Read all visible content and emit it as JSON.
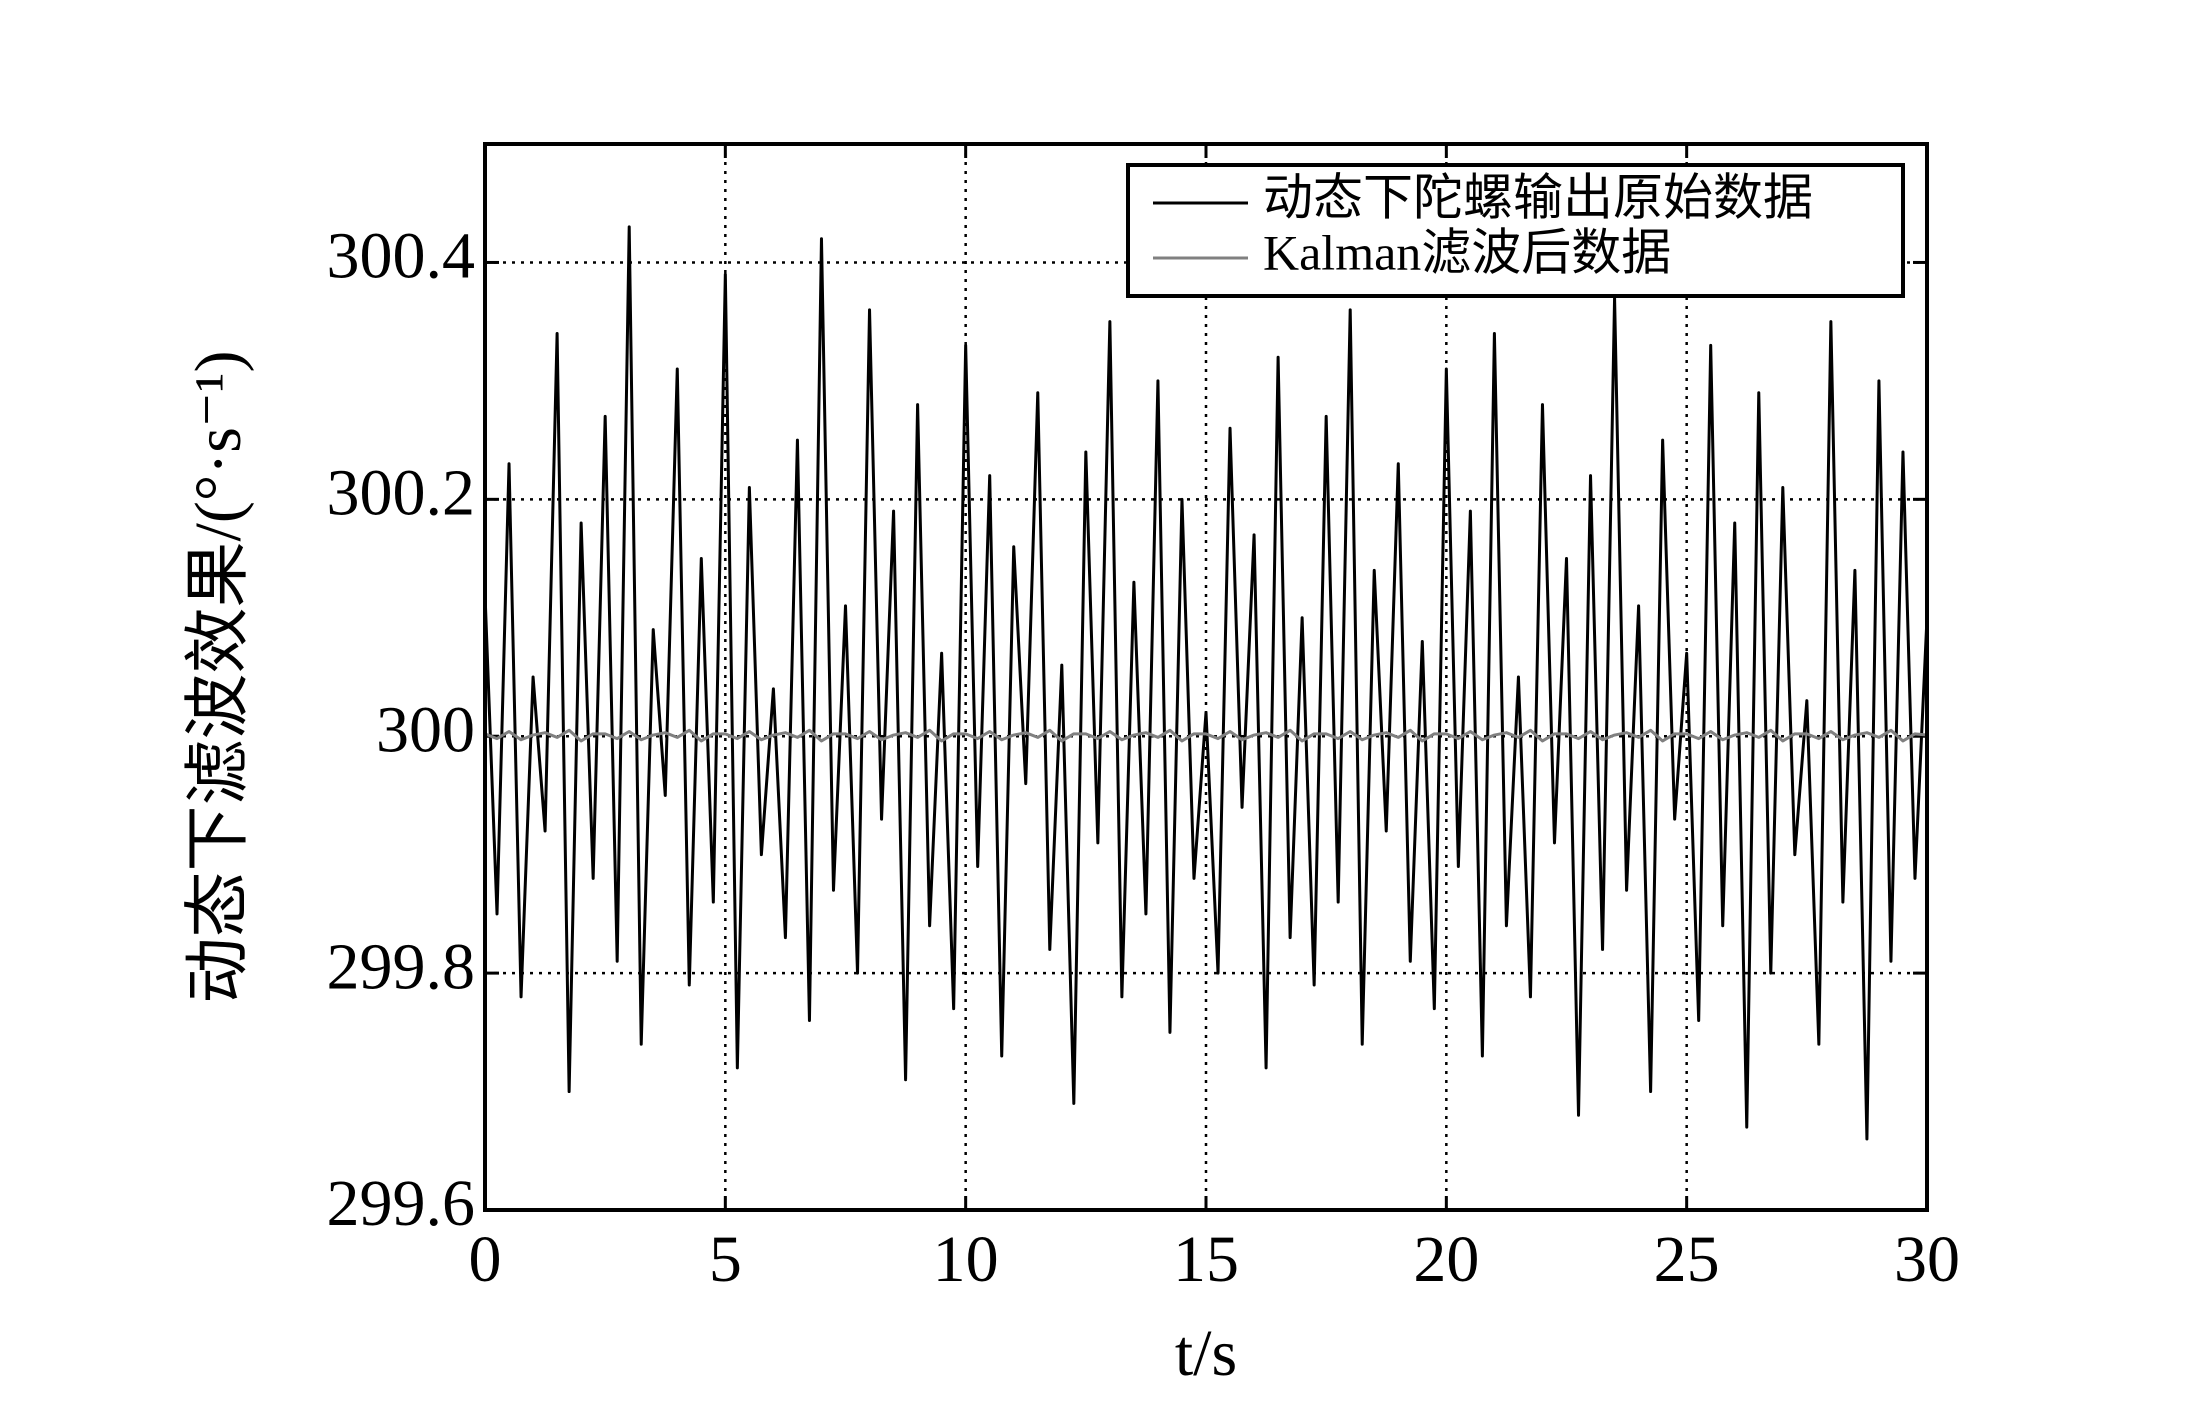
{
  "chart_data": {
    "type": "line",
    "x_label": "t/s",
    "y_label": "动态下滤波效果/(°·s⁻¹)",
    "xlim": [
      0,
      30
    ],
    "xticks": [
      0,
      5,
      10,
      15,
      20,
      25,
      30
    ],
    "ylim": [
      299.6,
      300.5
    ],
    "yticks": [
      299.6,
      299.8,
      300,
      300.2,
      300.4
    ],
    "grid": true,
    "legend": "upper right",
    "x": [
      0,
      0.25,
      0.5,
      0.75,
      1,
      1.25,
      1.5,
      1.75,
      2,
      2.25,
      2.5,
      2.75,
      3,
      3.25,
      3.5,
      3.75,
      4,
      4.25,
      4.5,
      4.75,
      5,
      5.25,
      5.5,
      5.75,
      6,
      6.25,
      6.5,
      6.75,
      7,
      7.25,
      7.5,
      7.75,
      8,
      8.25,
      8.5,
      8.75,
      9,
      9.25,
      9.5,
      9.75,
      10,
      10.25,
      10.5,
      10.75,
      11,
      11.25,
      11.5,
      11.75,
      12,
      12.25,
      12.5,
      12.75,
      13,
      13.25,
      13.5,
      13.75,
      14,
      14.25,
      14.5,
      14.75,
      15,
      15.25,
      15.5,
      15.75,
      16,
      16.25,
      16.5,
      16.75,
      17,
      17.25,
      17.5,
      17.75,
      18,
      18.25,
      18.5,
      18.75,
      19,
      19.25,
      19.5,
      19.75,
      20,
      20.25,
      20.5,
      20.75,
      21,
      21.25,
      21.5,
      21.75,
      22,
      22.25,
      22.5,
      22.75,
      23,
      23.25,
      23.5,
      23.75,
      24,
      24.25,
      24.5,
      24.75,
      25,
      25.25,
      25.5,
      25.75,
      26,
      26.25,
      26.5,
      26.75,
      27,
      27.25,
      27.5,
      27.75,
      28,
      28.25,
      28.5,
      28.75,
      29,
      29.25,
      29.5,
      29.75,
      30
    ],
    "series": [
      {
        "name": "动态下陀螺输出原始数据",
        "color": "#000000",
        "values": [
          300.12,
          299.85,
          300.23,
          299.78,
          300.05,
          299.92,
          300.34,
          299.7,
          300.18,
          299.88,
          300.27,
          299.81,
          300.43,
          299.74,
          300.09,
          299.95,
          300.31,
          299.79,
          300.15,
          299.86,
          300.39,
          299.72,
          300.21,
          299.9,
          300.04,
          299.83,
          300.25,
          299.76,
          300.42,
          299.87,
          300.11,
          299.8,
          300.36,
          299.93,
          300.19,
          299.71,
          300.28,
          299.84,
          300.07,
          299.77,
          300.33,
          299.89,
          300.22,
          299.73,
          300.16,
          299.96,
          300.29,
          299.82,
          300.06,
          299.69,
          300.24,
          299.91,
          300.35,
          299.78,
          300.13,
          299.85,
          300.3,
          299.75,
          300.2,
          299.88,
          300.02,
          299.8,
          300.26,
          299.94,
          300.17,
          299.72,
          300.32,
          299.83,
          300.1,
          299.79,
          300.27,
          299.86,
          300.36,
          299.74,
          300.14,
          299.92,
          300.23,
          299.81,
          300.08,
          299.77,
          300.31,
          299.89,
          300.19,
          299.73,
          300.34,
          299.84,
          300.05,
          299.78,
          300.28,
          299.91,
          300.15,
          299.68,
          300.22,
          299.82,
          300.37,
          299.87,
          300.11,
          299.7,
          300.25,
          299.93,
          300.07,
          299.76,
          300.33,
          299.84,
          300.18,
          299.67,
          300.29,
          299.8,
          300.21,
          299.9,
          300.03,
          299.74,
          300.35,
          299.86,
          300.14,
          299.66,
          300.3,
          299.81,
          300.24,
          299.88,
          300.1
        ]
      },
      {
        "name": "Kalman滤波后数据",
        "color": "#808080",
        "values": [
          300.002,
          299.998,
          300.004,
          299.997,
          300.001,
          300.003,
          299.999,
          300.005,
          299.996,
          300.002,
          300.002,
          299.998,
          300.004,
          299.997,
          300.001,
          300.003,
          299.999,
          300.005,
          299.996,
          300.002,
          300.002,
          299.998,
          300.004,
          299.997,
          300.001,
          300.003,
          299.999,
          300.005,
          299.996,
          300.002,
          300.002,
          299.998,
          300.004,
          299.997,
          300.001,
          300.003,
          299.999,
          300.005,
          299.996,
          300.002,
          300.002,
          299.998,
          300.004,
          299.997,
          300.001,
          300.003,
          299.999,
          300.005,
          299.996,
          300.002,
          300.002,
          299.998,
          300.004,
          299.997,
          300.001,
          300.003,
          299.999,
          300.005,
          299.996,
          300.002,
          300.002,
          299.998,
          300.004,
          299.997,
          300.001,
          300.003,
          299.999,
          300.005,
          299.996,
          300.002,
          300.002,
          299.998,
          300.004,
          299.997,
          300.001,
          300.003,
          299.999,
          300.005,
          299.996,
          300.002,
          300.002,
          299.998,
          300.004,
          299.997,
          300.001,
          300.003,
          299.999,
          300.005,
          299.996,
          300.002,
          300.002,
          299.998,
          300.004,
          299.997,
          300.001,
          300.003,
          299.999,
          300.005,
          299.996,
          300.002,
          300.002,
          299.998,
          300.004,
          299.997,
          300.001,
          300.003,
          299.999,
          300.005,
          299.996,
          300.002,
          300.002,
          299.998,
          300.004,
          299.997,
          300.001,
          300.003,
          299.999,
          300.005,
          299.996,
          300.002,
          300.001
        ]
      }
    ]
  }
}
